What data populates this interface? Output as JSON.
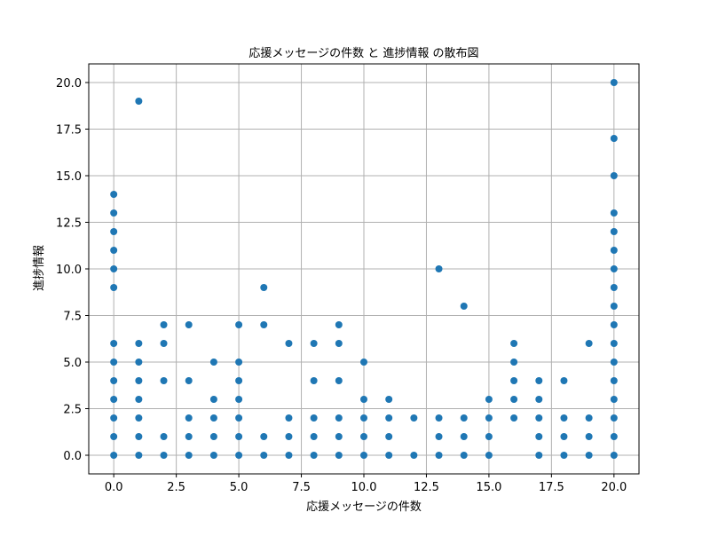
{
  "chart_data": {
    "type": "scatter",
    "title": "応援メッセージの件数 と 進捗情報 の散布図",
    "xlabel": "応援メッセージの件数",
    "ylabel": "進捗情報",
    "xlim": [
      -1,
      21
    ],
    "ylim": [
      -1,
      21
    ],
    "grid": true,
    "marker_color": "#1f77b4",
    "xticks": [
      0.0,
      2.5,
      5.0,
      7.5,
      10.0,
      12.5,
      15.0,
      17.5,
      20.0
    ],
    "xtick_labels": [
      "0.0",
      "2.5",
      "5.0",
      "7.5",
      "10.0",
      "12.5",
      "15.0",
      "17.5",
      "20.0"
    ],
    "yticks": [
      0.0,
      2.5,
      5.0,
      7.5,
      10.0,
      12.5,
      15.0,
      17.5,
      20.0
    ],
    "ytick_labels": [
      "0.0",
      "2.5",
      "5.0",
      "7.5",
      "10.0",
      "12.5",
      "15.0",
      "17.5",
      "20.0"
    ],
    "points": [
      [
        0,
        0
      ],
      [
        0,
        1
      ],
      [
        0,
        2
      ],
      [
        0,
        3
      ],
      [
        0,
        4
      ],
      [
        0,
        5
      ],
      [
        0,
        6
      ],
      [
        0,
        9
      ],
      [
        0,
        10
      ],
      [
        0,
        11
      ],
      [
        0,
        12
      ],
      [
        0,
        13
      ],
      [
        0,
        14
      ],
      [
        1,
        0
      ],
      [
        1,
        1
      ],
      [
        1,
        2
      ],
      [
        1,
        3
      ],
      [
        1,
        4
      ],
      [
        1,
        5
      ],
      [
        1,
        6
      ],
      [
        1,
        19
      ],
      [
        2,
        0
      ],
      [
        2,
        1
      ],
      [
        2,
        4
      ],
      [
        2,
        6
      ],
      [
        2,
        7
      ],
      [
        3,
        0
      ],
      [
        3,
        1
      ],
      [
        3,
        2
      ],
      [
        3,
        4
      ],
      [
        3,
        7
      ],
      [
        4,
        0
      ],
      [
        4,
        1
      ],
      [
        4,
        2
      ],
      [
        4,
        3
      ],
      [
        4,
        5
      ],
      [
        5,
        0
      ],
      [
        5,
        1
      ],
      [
        5,
        2
      ],
      [
        5,
        3
      ],
      [
        5,
        4
      ],
      [
        5,
        5
      ],
      [
        5,
        7
      ],
      [
        6,
        0
      ],
      [
        6,
        1
      ],
      [
        6,
        7
      ],
      [
        6,
        9
      ],
      [
        7,
        0
      ],
      [
        7,
        1
      ],
      [
        7,
        2
      ],
      [
        7,
        6
      ],
      [
        8,
        0
      ],
      [
        8,
        1
      ],
      [
        8,
        2
      ],
      [
        8,
        4
      ],
      [
        8,
        6
      ],
      [
        9,
        0
      ],
      [
        9,
        1
      ],
      [
        9,
        2
      ],
      [
        9,
        4
      ],
      [
        9,
        6
      ],
      [
        9,
        7
      ],
      [
        10,
        0
      ],
      [
        10,
        1
      ],
      [
        10,
        2
      ],
      [
        10,
        3
      ],
      [
        10,
        5
      ],
      [
        11,
        0
      ],
      [
        11,
        1
      ],
      [
        11,
        2
      ],
      [
        11,
        3
      ],
      [
        12,
        0
      ],
      [
        12,
        2
      ],
      [
        13,
        0
      ],
      [
        13,
        1
      ],
      [
        13,
        2
      ],
      [
        13,
        10
      ],
      [
        14,
        0
      ],
      [
        14,
        1
      ],
      [
        14,
        2
      ],
      [
        14,
        8
      ],
      [
        15,
        0
      ],
      [
        15,
        1
      ],
      [
        15,
        2
      ],
      [
        15,
        3
      ],
      [
        16,
        2
      ],
      [
        16,
        3
      ],
      [
        16,
        4
      ],
      [
        16,
        5
      ],
      [
        16,
        6
      ],
      [
        17,
        0
      ],
      [
        17,
        1
      ],
      [
        17,
        2
      ],
      [
        17,
        3
      ],
      [
        17,
        4
      ],
      [
        18,
        0
      ],
      [
        18,
        1
      ],
      [
        18,
        2
      ],
      [
        18,
        4
      ],
      [
        19,
        0
      ],
      [
        19,
        1
      ],
      [
        19,
        2
      ],
      [
        19,
        6
      ],
      [
        20,
        0
      ],
      [
        20,
        1
      ],
      [
        20,
        2
      ],
      [
        20,
        3
      ],
      [
        20,
        4
      ],
      [
        20,
        5
      ],
      [
        20,
        6
      ],
      [
        20,
        7
      ],
      [
        20,
        8
      ],
      [
        20,
        9
      ],
      [
        20,
        10
      ],
      [
        20,
        11
      ],
      [
        20,
        12
      ],
      [
        20,
        13
      ],
      [
        20,
        15
      ],
      [
        20,
        17
      ],
      [
        20,
        20
      ]
    ]
  }
}
